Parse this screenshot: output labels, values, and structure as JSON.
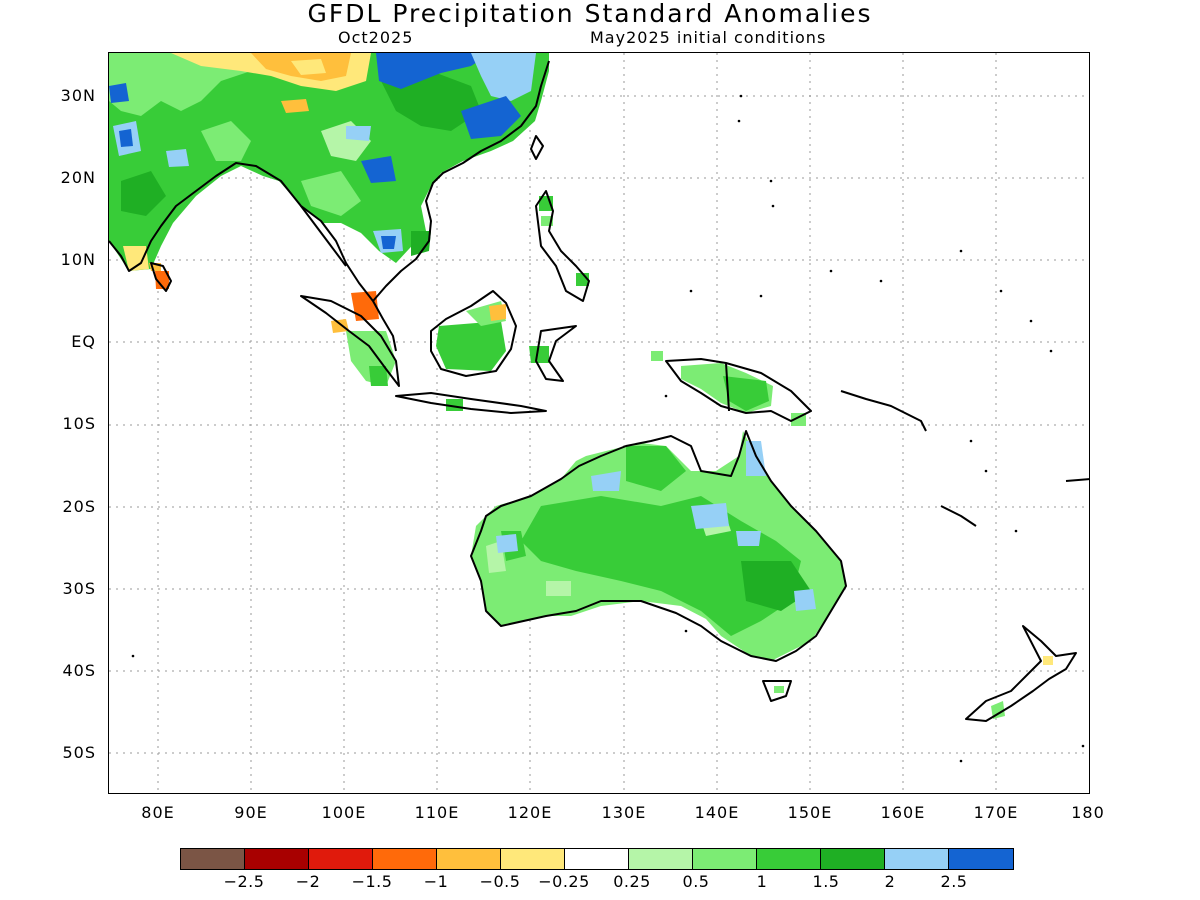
{
  "header": {
    "title": "GFDL Precipitation Standard Anomalies",
    "target_month": "Oct2025",
    "init_conditions": "May2025 initial conditions"
  },
  "axes": {
    "lat_labels": [
      "30N",
      "20N",
      "10N",
      "EQ",
      "10S",
      "20S",
      "30S",
      "40S",
      "50S"
    ],
    "lon_labels": [
      "80E",
      "90E",
      "100E",
      "110E",
      "120E",
      "130E",
      "140E",
      "150E",
      "160E",
      "170E",
      "180"
    ]
  },
  "colorbar": {
    "labels": [
      "−2.5",
      "−2",
      "−1.5",
      "−1",
      "−0.5",
      "−0.25",
      "0.25",
      "0.5",
      "1",
      "1.5",
      "2",
      "2.5"
    ],
    "colors": [
      "#7b5545",
      "#a80000",
      "#e01a0c",
      "#ff6a0a",
      "#ffbf3c",
      "#ffe87a",
      "#ffffff",
      "#b5f5a8",
      "#7cec74",
      "#38cc38",
      "#1faf24",
      "#96d0f6",
      "#1464d2"
    ]
  },
  "map": {
    "region": "Asia-Pacific / Australia",
    "lon_range": [
      75,
      180
    ],
    "lat_range": [
      -55,
      35
    ]
  }
}
